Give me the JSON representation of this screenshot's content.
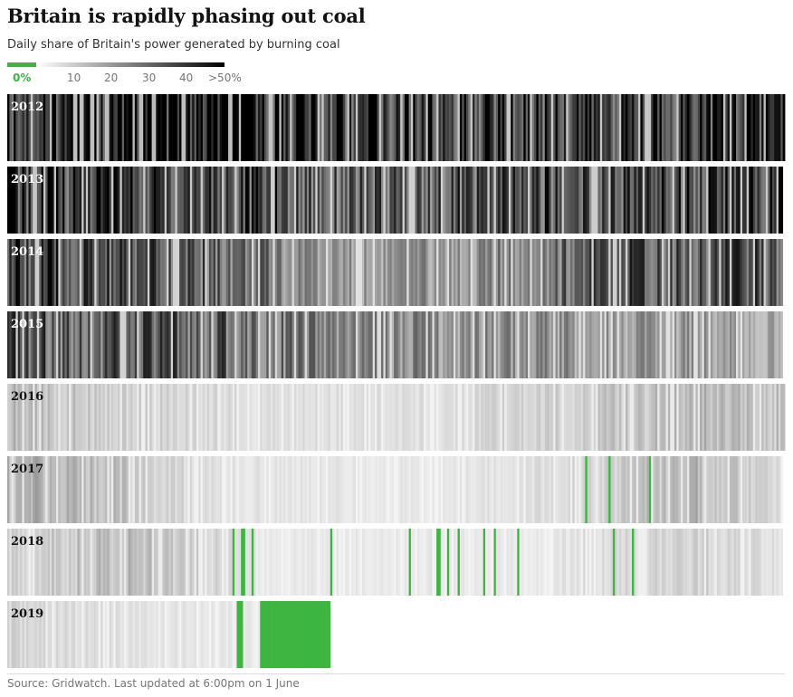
{
  "title": "Britain is rapidly phasing out coal",
  "subtitle": "Daily share of Britain's power generated by burning coal",
  "legend": {
    "labels": [
      "0%",
      "10",
      "20",
      "30",
      "40",
      ">50%"
    ],
    "zero_color": "#3db540",
    "scale_max_color": "#000000"
  },
  "source": "Source: Gridwatch. Last updated at 6:00pm on 1 June",
  "colors": {
    "coal_free": "#3db540",
    "low": "#ffffff",
    "high": "#000000",
    "label_dark_bg": "#ffffff",
    "label_light_bg": "#121212"
  },
  "chart_data": {
    "type": "heatmap",
    "title": "Britain is rapidly phasing out coal",
    "subtitle": "Daily share of Britain's power generated by burning coal",
    "value_unit": "% share of daily power from coal",
    "color_scale": {
      "min": 0,
      "max": 50,
      "zero_special_color": "#3db540",
      "max_label": ">50%"
    },
    "rows": [
      {
        "year": "2012",
        "days": 366,
        "profile": [
          [
            0,
            42
          ],
          [
            60,
            48
          ],
          [
            160,
            40
          ],
          [
            250,
            38
          ],
          [
            365,
            44
          ]
        ],
        "zero_days": []
      },
      {
        "year": "2013",
        "days": 365,
        "profile": [
          [
            0,
            40
          ],
          [
            90,
            38
          ],
          [
            160,
            30
          ],
          [
            250,
            34
          ],
          [
            364,
            38
          ]
        ],
        "zero_days": []
      },
      {
        "year": "2014",
        "days": 365,
        "profile": [
          [
            0,
            36
          ],
          [
            110,
            28
          ],
          [
            160,
            18
          ],
          [
            220,
            20
          ],
          [
            280,
            32
          ],
          [
            364,
            34
          ]
        ],
        "zero_days": []
      },
      {
        "year": "2015",
        "days": 365,
        "profile": [
          [
            0,
            32
          ],
          [
            100,
            30
          ],
          [
            150,
            22
          ],
          [
            250,
            20
          ],
          [
            320,
            18
          ],
          [
            364,
            15
          ]
        ],
        "zero_days": []
      },
      {
        "year": "2016",
        "days": 366,
        "profile": [
          [
            0,
            12
          ],
          [
            40,
            9
          ],
          [
            110,
            5
          ],
          [
            200,
            5
          ],
          [
            260,
            8
          ],
          [
            320,
            12
          ],
          [
            365,
            10
          ]
        ],
        "zero_days": []
      },
      {
        "year": "2017",
        "days": 365,
        "profile": [
          [
            0,
            14
          ],
          [
            40,
            12
          ],
          [
            100,
            4
          ],
          [
            200,
            3
          ],
          [
            270,
            6
          ],
          [
            320,
            13
          ],
          [
            364,
            5
          ]
        ],
        "zero_days": [
          272,
          283,
          302
        ]
      },
      {
        "year": "2018",
        "days": 365,
        "profile": [
          [
            0,
            7
          ],
          [
            50,
            12
          ],
          [
            80,
            9
          ],
          [
            120,
            3
          ],
          [
            250,
            3
          ],
          [
            290,
            6
          ],
          [
            330,
            8
          ],
          [
            364,
            4
          ]
        ],
        "zero_days": [
          106,
          110,
          111,
          115,
          152,
          189,
          202,
          203,
          207,
          212,
          224,
          229,
          240,
          285,
          294
        ]
      },
      {
        "year": "2019",
        "days": 152,
        "profile": [
          [
            0,
            7
          ],
          [
            40,
            5
          ],
          [
            100,
            3
          ],
          [
            151,
            3
          ]
        ],
        "zero_days": [
          108,
          109,
          110,
          119,
          120,
          121,
          122,
          123,
          124,
          125,
          126,
          127,
          128,
          129,
          130,
          131,
          132,
          133,
          134,
          135,
          136,
          137,
          138,
          139,
          140,
          141,
          142,
          143,
          144,
          145,
          146,
          147,
          148,
          149,
          150,
          151
        ]
      }
    ],
    "legend": {
      "labels": [
        "0%",
        "10",
        "20",
        "30",
        "40",
        ">50%"
      ]
    }
  }
}
